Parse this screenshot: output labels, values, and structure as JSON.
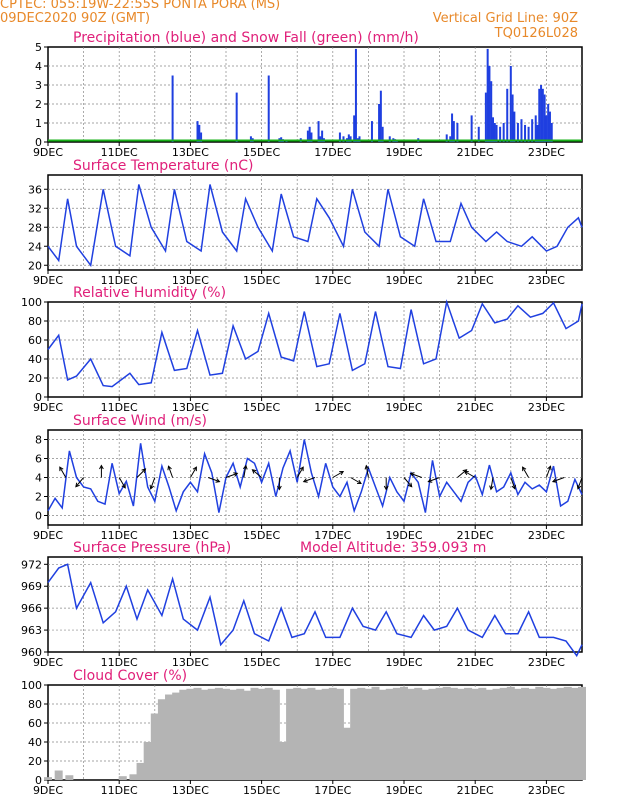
{
  "header": {
    "left_line1": "CPTEC:   055:19W-22:55S   PONTA PORA (MS)",
    "left_line2": "09DEC2020 90Z (GMT)",
    "right_line1": "Vertical Grid Line: 90Z",
    "right_line2": "TQ0126L028"
  },
  "colors": {
    "header": "#e8892a",
    "title": "#e0207a",
    "line": "#2040e0",
    "bars": "#1f3fe0",
    "snow": "#18b018",
    "cloud": "#b4b4b4",
    "arrows": "#000000"
  },
  "x_ticks": [
    "9DEC",
    "11DEC",
    "13DEC",
    "15DEC",
    "17DEC",
    "19DEC",
    "21DEC",
    "23DEC"
  ],
  "chart_data": [
    {
      "type": "bar",
      "title": "Precipitation (blue) and Snow Fall (green) (mm/h)",
      "ylim": [
        0,
        5
      ],
      "yticks": [
        "0",
        "1",
        "2",
        "3",
        "4",
        "5"
      ],
      "x_days": [
        3.5,
        4.2,
        4.25,
        4.3,
        5.3,
        5.7,
        5.75,
        6.2,
        6.5,
        6.55,
        6.6,
        6.7,
        7.1,
        7.3,
        7.35,
        7.4,
        7.6,
        7.65,
        7.7,
        7.75,
        8.2,
        8.3,
        8.4,
        8.45,
        8.5,
        8.6,
        8.65,
        8.7,
        8.75,
        9.1,
        9.3,
        9.35,
        9.4,
        9.6,
        9.7,
        9.75,
        9.8,
        10.4,
        11.2,
        11.3,
        11.35,
        11.4,
        11.5,
        11.9,
        12.1,
        12.3,
        12.35,
        12.4,
        12.45,
        12.5,
        12.55,
        12.6,
        12.7,
        12.8,
        12.9,
        13.0,
        13.05,
        13.1,
        13.2,
        13.3,
        13.4,
        13.5,
        13.6,
        13.7,
        13.75,
        13.8,
        13.85,
        13.9,
        13.95,
        14.0,
        14.05,
        14.1,
        14.15
      ],
      "values": [
        3.5,
        1.1,
        0.9,
        0.5,
        2.6,
        0.3,
        0.2,
        3.5,
        0.2,
        0.25,
        0.15,
        0.1,
        0.2,
        0.6,
        0.8,
        0.5,
        1.1,
        0.3,
        0.6,
        0.2,
        0.5,
        0.3,
        0.2,
        0.4,
        0.3,
        1.4,
        4.9,
        0.2,
        0.3,
        1.1,
        2.0,
        2.7,
        0.8,
        0.3,
        0.2,
        0.15,
        0.1,
        0.2,
        0.4,
        0.3,
        1.5,
        1.1,
        1.0,
        1.4,
        0.8,
        2.6,
        4.9,
        4.0,
        3.2,
        1.3,
        1.0,
        0.9,
        0.8,
        1.0,
        2.8,
        4.0,
        2.5,
        1.6,
        1.0,
        1.2,
        0.9,
        0.8,
        1.2,
        1.4,
        0.9,
        2.8,
        3.0,
        2.8,
        2.5,
        1.4,
        2.0,
        1.6,
        1.0
      ],
      "snow_values": []
    },
    {
      "type": "line",
      "title": "Surface Temperature (nC)",
      "ylim": [
        19,
        39
      ],
      "yticks": [
        20,
        24,
        28,
        32,
        36
      ],
      "x_days": [
        0.0,
        0.3,
        0.55,
        0.8,
        1.2,
        1.55,
        1.9,
        2.3,
        2.55,
        2.9,
        3.3,
        3.55,
        3.9,
        4.3,
        4.55,
        4.9,
        5.3,
        5.55,
        5.9,
        6.3,
        6.55,
        6.9,
        7.3,
        7.55,
        7.9,
        8.3,
        8.55,
        8.9,
        9.3,
        9.55,
        9.9,
        10.3,
        10.55,
        10.9,
        11.3,
        11.6,
        11.9,
        12.3,
        12.6,
        12.9,
        13.3,
        13.6,
        14.0,
        14.3,
        14.6,
        14.9,
        15.0
      ],
      "values": [
        24,
        21,
        34,
        24,
        20,
        36,
        24,
        22,
        37,
        28,
        23,
        36,
        25,
        23,
        37,
        27,
        23,
        34,
        28,
        23,
        35,
        26,
        25,
        34,
        30,
        24,
        36,
        27,
        24,
        36,
        26,
        24,
        34,
        25,
        25,
        33,
        28,
        25,
        27,
        25,
        24,
        26,
        23,
        24,
        28,
        30,
        28
      ]
    },
    {
      "type": "line",
      "title": "Relative Humidity (%)",
      "ylim": [
        0,
        100
      ],
      "yticks": [
        0,
        20,
        40,
        60,
        80,
        100
      ],
      "x_days": [
        0.0,
        0.3,
        0.55,
        0.8,
        1.2,
        1.55,
        1.8,
        2.3,
        2.55,
        2.9,
        3.2,
        3.55,
        3.9,
        4.2,
        4.55,
        4.9,
        5.2,
        5.55,
        5.9,
        6.2,
        6.55,
        6.9,
        7.2,
        7.55,
        7.9,
        8.2,
        8.55,
        8.9,
        9.2,
        9.55,
        9.9,
        10.2,
        10.55,
        10.9,
        11.2,
        11.55,
        11.9,
        12.2,
        12.55,
        12.9,
        13.2,
        13.55,
        13.9,
        14.2,
        14.55,
        14.9,
        15.0
      ],
      "values": [
        50,
        65,
        18,
        22,
        40,
        12,
        11,
        25,
        13,
        15,
        68,
        28,
        30,
        70,
        23,
        25,
        75,
        40,
        48,
        88,
        42,
        38,
        90,
        32,
        35,
        88,
        28,
        35,
        90,
        32,
        30,
        92,
        35,
        40,
        100,
        62,
        70,
        98,
        78,
        82,
        96,
        84,
        88,
        99,
        72,
        80,
        98
      ]
    },
    {
      "type": "line",
      "title": "Surface Wind (m/s)",
      "ylim": [
        -1,
        9
      ],
      "yticks": [
        0,
        2,
        4,
        6,
        8
      ],
      "x_days": [
        0.0,
        0.2,
        0.4,
        0.6,
        0.8,
        1.0,
        1.2,
        1.4,
        1.6,
        1.8,
        2.0,
        2.2,
        2.4,
        2.6,
        2.8,
        3.0,
        3.2,
        3.4,
        3.6,
        3.8,
        4.0,
        4.2,
        4.4,
        4.6,
        4.8,
        5.0,
        5.2,
        5.4,
        5.6,
        5.8,
        6.0,
        6.2,
        6.4,
        6.6,
        6.8,
        7.0,
        7.2,
        7.4,
        7.6,
        7.8,
        8.0,
        8.2,
        8.4,
        8.6,
        8.8,
        9.0,
        9.2,
        9.4,
        9.6,
        9.8,
        10.0,
        10.2,
        10.4,
        10.6,
        10.8,
        11.0,
        11.2,
        11.4,
        11.6,
        11.8,
        12.0,
        12.2,
        12.4,
        12.6,
        12.8,
        13.0,
        13.2,
        13.4,
        13.6,
        13.8,
        14.0,
        14.2,
        14.4,
        14.6,
        14.8,
        15.0
      ],
      "values": [
        0.5,
        1.8,
        0.8,
        6.8,
        4.0,
        3.0,
        2.8,
        1.5,
        1.2,
        5.5,
        2.3,
        3.6,
        1.0,
        7.6,
        3.0,
        1.5,
        5.2,
        3.0,
        0.5,
        2.5,
        3.5,
        2.5,
        6.5,
        4.5,
        0.3,
        4.0,
        5.5,
        3.0,
        6.0,
        5.5,
        3.5,
        5.5,
        2.0,
        5.0,
        6.8,
        3.5,
        8.0,
        4.5,
        2.0,
        5.5,
        3.0,
        2.0,
        3.5,
        0.5,
        2.5,
        5.0,
        3.0,
        1.0,
        4.0,
        2.5,
        1.5,
        4.5,
        3.5,
        0.3,
        5.8,
        2.0,
        3.5,
        2.5,
        1.5,
        3.5,
        4.2,
        2.2,
        5.3,
        2.5,
        3.0,
        4.5,
        2.2,
        3.5,
        2.8,
        3.2,
        2.5,
        5.2,
        1.0,
        1.5,
        3.8,
        2.2
      ],
      "arrows": {
        "x_days": [
          0.5,
          1.0,
          1.5,
          2.0,
          2.5,
          3.0,
          3.5,
          4.0,
          4.5,
          5.0,
          5.5,
          6.0,
          6.5,
          7.0,
          7.5,
          8.0,
          8.5,
          9.0,
          9.5,
          10.0,
          10.5,
          11.0,
          11.5,
          12.0,
          12.5,
          13.0,
          13.5,
          14.0,
          14.5,
          15.0
        ],
        "dir_deg": [
          120,
          230,
          90,
          300,
          45,
          250,
          110,
          60,
          340,
          20,
          80,
          140,
          270,
          60,
          200,
          30,
          330,
          100,
          270,
          310,
          160,
          200,
          40,
          150,
          260,
          290,
          120,
          70,
          200,
          250
        ]
      }
    },
    {
      "type": "line",
      "title": "Surface Pressure (hPa)",
      "annotation": "Model Altitude: 359.093 m",
      "ylim": [
        960,
        973
      ],
      "yticks": [
        960,
        963,
        966,
        969,
        972
      ],
      "x_days": [
        0.0,
        0.3,
        0.55,
        0.8,
        1.2,
        1.55,
        1.9,
        2.2,
        2.5,
        2.8,
        3.2,
        3.5,
        3.8,
        4.2,
        4.55,
        4.85,
        5.2,
        5.5,
        5.8,
        6.2,
        6.55,
        6.85,
        7.2,
        7.5,
        7.8,
        8.2,
        8.55,
        8.85,
        9.2,
        9.5,
        9.8,
        10.2,
        10.55,
        10.85,
        11.2,
        11.5,
        11.8,
        12.2,
        12.55,
        12.85,
        13.2,
        13.5,
        13.8,
        14.2,
        14.55,
        14.85,
        15.0
      ],
      "values": [
        969.5,
        971.5,
        972,
        966,
        969.5,
        964,
        965.5,
        969,
        964.5,
        968.5,
        965,
        970,
        964.5,
        963,
        967.5,
        961,
        963,
        967,
        962.5,
        961.5,
        966,
        962,
        962.5,
        965.5,
        962,
        962,
        966,
        963.5,
        963,
        965.5,
        962.5,
        962,
        965,
        963,
        963.5,
        966,
        963,
        962,
        965,
        962.5,
        962.5,
        965.5,
        962,
        962,
        961.5,
        959.5,
        961
      ]
    },
    {
      "type": "bar",
      "title": "Cloud Cover (%)",
      "ylim": [
        0,
        100
      ],
      "yticks": [
        0,
        20,
        40,
        60,
        80,
        100
      ],
      "x_days": [
        0.0,
        0.3,
        0.6,
        0.9,
        1.2,
        1.5,
        1.8,
        2.1,
        2.4,
        2.6,
        2.8,
        3.0,
        3.2,
        3.4,
        3.6,
        3.8,
        4.0,
        4.2,
        4.4,
        4.6,
        4.8,
        5.0,
        5.2,
        5.4,
        5.6,
        5.8,
        6.0,
        6.2,
        6.4,
        6.6,
        6.8,
        7.0,
        7.2,
        7.4,
        7.6,
        7.8,
        8.0,
        8.2,
        8.4,
        8.6,
        8.8,
        9.0,
        9.2,
        9.4,
        9.6,
        9.8,
        10.0,
        10.2,
        10.4,
        10.6,
        10.8,
        11.0,
        11.2,
        11.4,
        11.6,
        11.8,
        12.0,
        12.2,
        12.4,
        12.6,
        12.8,
        13.0,
        13.2,
        13.4,
        13.6,
        13.8,
        14.0,
        14.2,
        14.4,
        14.6,
        14.8,
        15.0
      ],
      "values": [
        3,
        10,
        5,
        0,
        0,
        0,
        0,
        4,
        6,
        18,
        40,
        70,
        85,
        90,
        92,
        95,
        96,
        97,
        95,
        96,
        97,
        96,
        95,
        96,
        94,
        97,
        96,
        97,
        95,
        40,
        96,
        97,
        96,
        97,
        95,
        96,
        97,
        96,
        55,
        96,
        97,
        96,
        98,
        95,
        96,
        97,
        98,
        96,
        97,
        95,
        96,
        97,
        98,
        97,
        96,
        97,
        96,
        97,
        95,
        96,
        97,
        98,
        96,
        97,
        96,
        98,
        97,
        96,
        97,
        98,
        97,
        98
      ]
    }
  ]
}
